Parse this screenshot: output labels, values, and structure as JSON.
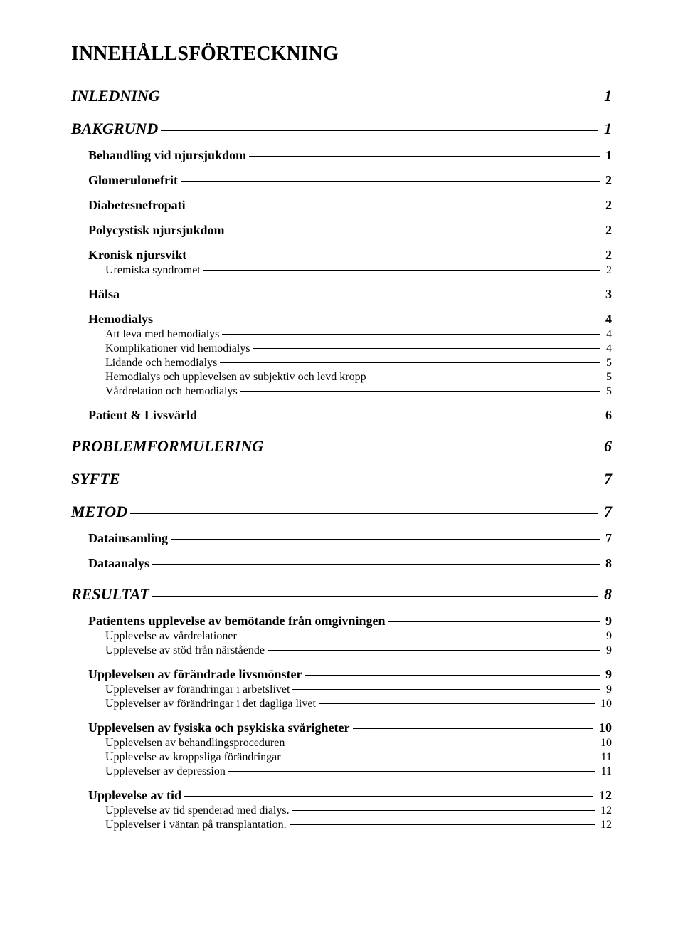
{
  "title": "INNEHÅLLSFÖRTECKNING",
  "toc": [
    {
      "level": 1,
      "label": "INLEDNING",
      "page": "1"
    },
    {
      "level": 1,
      "label": "BAKGRUND",
      "page": "1"
    },
    {
      "level": 2,
      "label": "Behandling vid njursjukdom",
      "page": "1"
    },
    {
      "level": 2,
      "label": "Glomerulonefrit",
      "page": "2"
    },
    {
      "level": 2,
      "label": "Diabetesnefropati",
      "page": "2"
    },
    {
      "level": 2,
      "label": "Polycystisk njursjukdom",
      "page": "2"
    },
    {
      "level": 2,
      "label": "Kronisk njursvikt",
      "page": "2"
    },
    {
      "level": 3,
      "label": "Uremiska syndromet",
      "page": "2"
    },
    {
      "level": 2,
      "label": "Hälsa",
      "page": "3"
    },
    {
      "level": 2,
      "label": "Hemodialys",
      "page": "4"
    },
    {
      "level": 3,
      "label": "Att leva med hemodialys",
      "page": "4"
    },
    {
      "level": 3,
      "label": "Komplikationer vid hemodialys",
      "page": "4"
    },
    {
      "level": 3,
      "label": "Lidande och hemodialys",
      "page": "5"
    },
    {
      "level": 3,
      "label": "Hemodialys och upplevelsen av subjektiv och levd kropp",
      "page": "5"
    },
    {
      "level": 3,
      "label": "Vårdrelation och hemodialys",
      "page": "5"
    },
    {
      "level": 2,
      "label": "Patient & Livsvärld",
      "page": "6"
    },
    {
      "level": 1,
      "label": "PROBLEMFORMULERING",
      "page": "6"
    },
    {
      "level": 1,
      "label": "SYFTE",
      "page": "7"
    },
    {
      "level": 1,
      "label": "METOD",
      "page": "7"
    },
    {
      "level": 2,
      "label": "Datainsamling",
      "page": "7"
    },
    {
      "level": 2,
      "label": "Dataanalys",
      "page": "8"
    },
    {
      "level": 1,
      "label": "RESULTAT",
      "page": "8"
    },
    {
      "level": 2,
      "label": "Patientens upplevelse av bemötande från omgivningen",
      "page": "9"
    },
    {
      "level": 3,
      "label": "Upplevelse av vårdrelationer",
      "page": "9"
    },
    {
      "level": 3,
      "label": "Upplevelse av stöd från närstående",
      "page": "9"
    },
    {
      "level": 2,
      "label": "Upplevelsen av förändrade livsmönster",
      "page": "9"
    },
    {
      "level": 3,
      "label": "Upplevelser av förändringar i arbetslivet",
      "page": "9"
    },
    {
      "level": 3,
      "label": "Upplevelser av förändringar i det dagliga livet",
      "page": "10"
    },
    {
      "level": 2,
      "label": "Upplevelsen av fysiska och psykiska svårigheter",
      "page": "10"
    },
    {
      "level": 3,
      "label": "Upplevelsen av behandlingsproceduren",
      "page": "10"
    },
    {
      "level": 3,
      "label": "Upplevelse av kroppsliga förändringar",
      "page": "11"
    },
    {
      "level": 3,
      "label": "Upplevelser av depression",
      "page": "11"
    },
    {
      "level": 2,
      "label": "Upplevelse av tid",
      "page": "12"
    },
    {
      "level": 3,
      "label": "Upplevelse av tid spenderad med dialys.",
      "page": "12"
    },
    {
      "level": 3,
      "label": "Upplevelser i väntan på transplantation.",
      "page": "12"
    }
  ]
}
